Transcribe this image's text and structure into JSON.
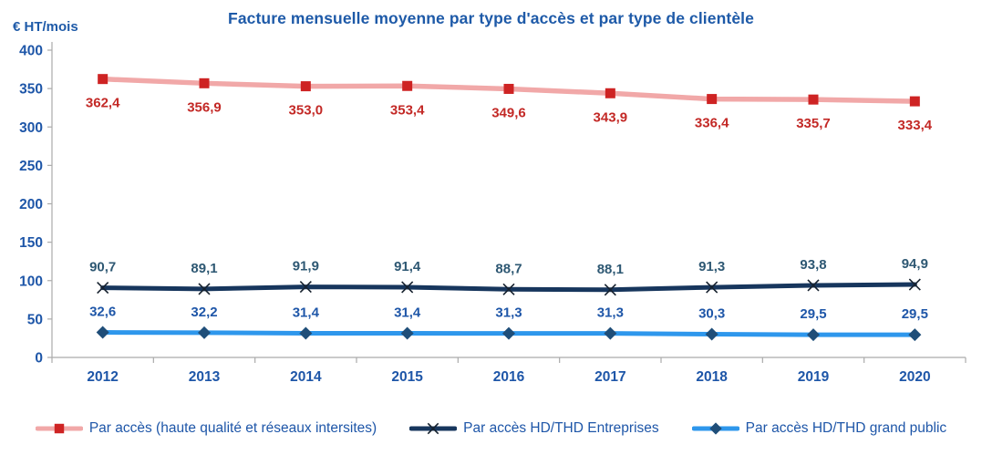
{
  "title": "Facture mensuelle moyenne par type d'accès et par type de clientèle",
  "colors": {
    "title_text": "#1E5AA8",
    "axis_text": "#1E56A8",
    "axis_line": "#ABABAB",
    "legend_text": "#1E56A8",
    "background": "#FFFFFF"
  },
  "chart_data": {
    "type": "line",
    "title": "Facture mensuelle moyenne par type d'accès et par type de clientèle",
    "xlabel": "",
    "ylabel": "€ HT/mois",
    "categories": [
      "2012",
      "2013",
      "2014",
      "2015",
      "2016",
      "2017",
      "2018",
      "2019",
      "2020"
    ],
    "ylim": [
      0,
      400
    ],
    "yticks": [
      400,
      350,
      300,
      250,
      200,
      150,
      100,
      50,
      0
    ],
    "grid": false,
    "legend_position": "bottom",
    "series": [
      {
        "id": "haute-qualite",
        "name": "Par accès (haute qualité et réseaux intersites)",
        "values": [
          362.4,
          356.9,
          353.0,
          353.4,
          349.6,
          343.9,
          336.4,
          335.7,
          333.4
        ],
        "labels": [
          "362,4",
          "356,9",
          "353,0",
          "353,4",
          "349,6",
          "343,9",
          "336,4",
          "335,7",
          "333,4"
        ],
        "line_color": "#F1A8A8",
        "line_width": 5.5,
        "marker": "square",
        "marker_color": "#CE2323",
        "label_color": "#C32926",
        "label_position": "below"
      },
      {
        "id": "hd-thd-entreprises",
        "name": "Par accès HD/THD Entreprises",
        "values": [
          90.7,
          89.1,
          91.9,
          91.4,
          88.7,
          88.1,
          91.3,
          93.8,
          94.9
        ],
        "labels": [
          "90,7",
          "89,1",
          "91,9",
          "91,4",
          "88,7",
          "88,1",
          "91,3",
          "93,8",
          "94,9"
        ],
        "line_color": "#17365D",
        "line_width": 5,
        "marker": "x",
        "marker_color": "#16212E",
        "label_color": "#2E5873",
        "label_position": "above"
      },
      {
        "id": "hd-thd-grand-public",
        "name": "Par accès HD/THD grand public",
        "values": [
          32.6,
          32.2,
          31.4,
          31.4,
          31.3,
          31.3,
          30.3,
          29.5,
          29.5
        ],
        "labels": [
          "32,6",
          "32,2",
          "31,4",
          "31,4",
          "31,3",
          "31,3",
          "30,3",
          "29,5",
          "29,5"
        ],
        "line_color": "#2E97EC",
        "line_width": 5,
        "marker": "diamond",
        "marker_color": "#1F4E79",
        "label_color": "#1E56A8",
        "label_position": "above"
      }
    ]
  }
}
